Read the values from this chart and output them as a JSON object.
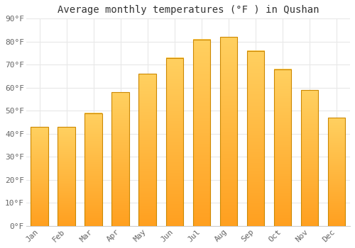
{
  "title": "Average monthly temperatures (°F ) in Qushan",
  "months": [
    "Jan",
    "Feb",
    "Mar",
    "Apr",
    "May",
    "Jun",
    "Jul",
    "Aug",
    "Sep",
    "Oct",
    "Nov",
    "Dec"
  ],
  "values": [
    43,
    43,
    49,
    58,
    66,
    73,
    81,
    82,
    76,
    68,
    59,
    47
  ],
  "bar_color_top": "#FFD060",
  "bar_color_bottom": "#FFA020",
  "bar_edge_color": "#CC8800",
  "background_color": "#FFFFFF",
  "ylim": [
    0,
    90
  ],
  "ytick_step": 10,
  "title_fontsize": 10,
  "tick_fontsize": 8,
  "grid_color": "#E8E8E8"
}
